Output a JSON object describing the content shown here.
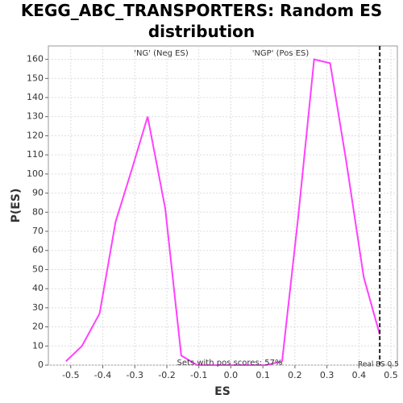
{
  "chart_data": {
    "type": "line",
    "title": "KEGG_ABC_TRANSPORTERS: Random ES distribution",
    "x_label": "ES",
    "y_label": "P(ES)",
    "series": [
      {
        "name": "P(ES)",
        "color": "#ff40ff",
        "x": [
          -0.515,
          -0.465,
          -0.41,
          -0.36,
          -0.31,
          -0.26,
          -0.205,
          -0.155,
          -0.105,
          0.11,
          0.16,
          0.21,
          0.26,
          0.31,
          0.36,
          0.415,
          0.465
        ],
        "values": [
          2,
          10,
          27,
          75,
          102,
          130,
          82,
          5,
          0,
          0,
          2,
          77,
          160,
          158,
          107,
          46,
          16
        ]
      }
    ],
    "real_es": 0.465,
    "annotations": [
      {
        "text": "'NG' (Neg ES)",
        "color": "#2020ff"
      },
      {
        "text": "'NGP' (Pos ES)",
        "color": "#ff2020"
      },
      {
        "text": "Sets with pos scores: 57%",
        "color": "#333333"
      },
      {
        "text": "Real ES 0.5",
        "color": "#333333"
      }
    ],
    "xlim": [
      -0.57,
      0.52
    ],
    "ylim": [
      0,
      167
    ],
    "xticks": [
      -0.5,
      -0.4,
      -0.3,
      -0.2,
      -0.1,
      {
        "value": 0,
        "label": "0.0"
      },
      0.1,
      0.2,
      0.3,
      0.4,
      0.5
    ],
    "yticks": [
      0,
      10,
      20,
      30,
      40,
      50,
      60,
      70,
      80,
      90,
      100,
      110,
      120,
      130,
      140,
      150,
      160
    ],
    "grid": true
  }
}
